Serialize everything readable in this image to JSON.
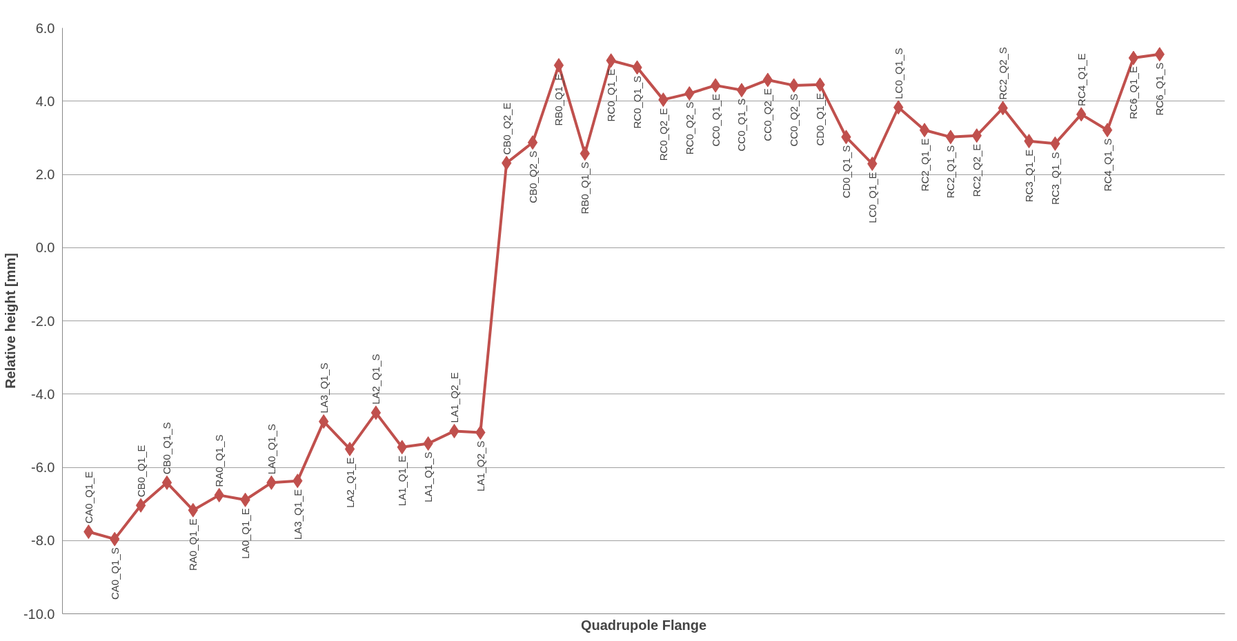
{
  "chart_data": {
    "type": "line",
    "xlabel": "Quadrupole Flange",
    "ylabel": "Relative height [mm]",
    "categories": [
      "CA0_Q1_E",
      "CA0_Q1_S",
      "CB0_Q1_E",
      "CB0_Q1_S",
      "RA0_Q1_E",
      "RA0_Q1_S",
      "LA0_Q1_E",
      "LA0_Q1_S",
      "LA3_Q1_E",
      "LA3_Q1_S",
      "LA2_Q1_E",
      "LA2_Q1_S",
      "LA1_Q1_E",
      "LA1_Q1_S",
      "LA1_Q2_E",
      "LA1_Q2_S",
      "CB0_Q2_E",
      "CB0_Q2_S",
      "RB0_Q1_E",
      "RB0_Q1_S",
      "RC0_Q1_E",
      "RC0_Q1_S",
      "RC0_Q2_E",
      "RC0_Q2_S",
      "CC0_Q1_E",
      "CC0_Q1_S",
      "CC0_Q2_E",
      "CC0_Q2_S",
      "CD0_Q1_E",
      "CD0_Q1_S",
      "LC0_Q1_E",
      "LC0_Q1_S",
      "RC2_Q1_E",
      "RC2_Q1_S",
      "RC2_Q2_E",
      "RC2_Q2_S",
      "RC3_Q1_E",
      "RC3_Q1_S",
      "RC4_Q1_E",
      "RC4_Q1_S",
      "RC6_Q1_E",
      "RC6_Q1_S"
    ],
    "series": [
      {
        "color": "#c0504d",
        "values": [
          -7.76,
          -7.96,
          -7.04,
          -6.42,
          -7.17,
          -6.76,
          -6.89,
          -6.42,
          -6.37,
          -4.75,
          -5.5,
          -4.51,
          -5.45,
          -5.35,
          -5.01,
          -5.05,
          2.31,
          2.87,
          4.98,
          2.57,
          5.11,
          4.92,
          4.04,
          4.21,
          4.43,
          4.3,
          4.58,
          4.43,
          4.45,
          3.02,
          2.29,
          3.83,
          3.21,
          3.02,
          3.06,
          3.81,
          2.91,
          2.84,
          3.64,
          3.21,
          5.18,
          5.28
        ]
      }
    ],
    "ylim": [
      -10,
      6
    ],
    "yticks": [
      {
        "value": -10,
        "label": "-10.0"
      },
      {
        "value": -8,
        "label": "-8.0"
      },
      {
        "value": -6,
        "label": "-6.0"
      },
      {
        "value": -4,
        "label": "-4.0"
      },
      {
        "value": -2,
        "label": "-2.0"
      },
      {
        "value": 0,
        "label": "0.0"
      },
      {
        "value": 2,
        "label": "2.0"
      },
      {
        "value": 4,
        "label": "4.0"
      },
      {
        "value": 6,
        "label": "6.0"
      }
    ],
    "grid": "y",
    "marker": "diamond",
    "line_style": "solid"
  }
}
